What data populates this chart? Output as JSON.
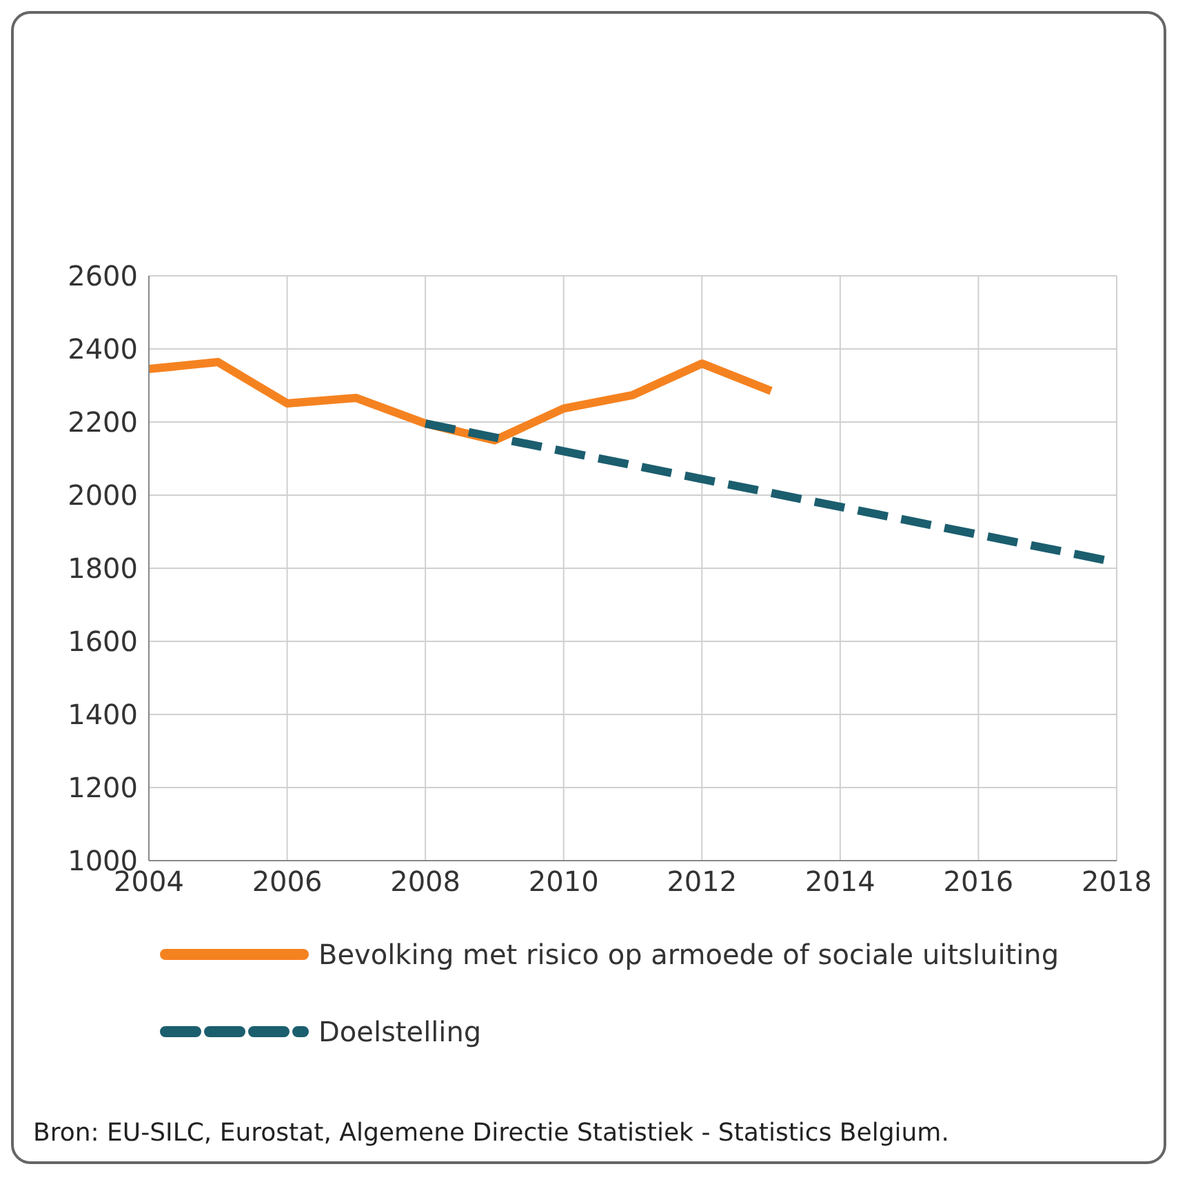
{
  "chart_data": {
    "type": "line",
    "xlim": [
      2004,
      2018
    ],
    "xticks": [
      2004,
      2006,
      2008,
      2010,
      2012,
      2014,
      2016,
      2018
    ],
    "ylim": [
      1000,
      2600
    ],
    "yticks": [
      1000,
      1200,
      1400,
      1600,
      1800,
      2000,
      2200,
      2400,
      2600
    ],
    "grid": true,
    "legend": "bottom",
    "series": [
      {
        "name": "Bevolking met risico op armoede of sociale uitsluiting",
        "color": "#f58220",
        "line_style": "solid",
        "x": [
          2004,
          2005,
          2006,
          2007,
          2008,
          2009,
          2010,
          2011,
          2012,
          2013
        ],
        "values": [
          2345,
          2364,
          2251,
          2266,
          2196,
          2150,
          2237,
          2274,
          2360,
          2285
        ]
      },
      {
        "name": "Doelstelling",
        "color": "#1b5e6e",
        "line_style": "dashed",
        "x": [
          2008,
          2018
        ],
        "values": [
          2196,
          1816
        ]
      }
    ],
    "annotations": [
      "Bron: EU-SILC, Eurostat, Algemene Directie Statistiek - Statistics Belgium."
    ]
  }
}
